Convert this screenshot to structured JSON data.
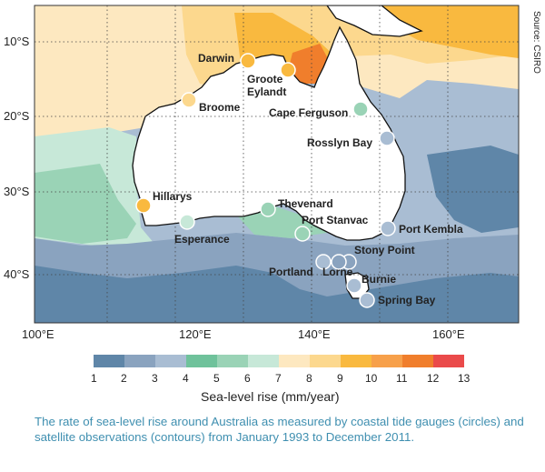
{
  "source": "Source: CSIRO",
  "axes": {
    "latitudes": [
      "10°S",
      "20°S",
      "30°S",
      "40°S"
    ],
    "longitudes": [
      "100°E",
      "120°E",
      "140°E",
      "160°E"
    ]
  },
  "stations": [
    {
      "name": "Darwin",
      "rate_band": 9,
      "color": "#f9b93f"
    },
    {
      "name": "Groote\nEylandt",
      "rate_band": 9,
      "color": "#f9b93f"
    },
    {
      "name": "Broome",
      "rate_band": 8,
      "color": "#fcd88e"
    },
    {
      "name": "Cape Ferguson",
      "rate_band": 5,
      "color": "#9ad3b6"
    },
    {
      "name": "Rosslyn Bay",
      "rate_band": 3,
      "color": "#a9bdd3"
    },
    {
      "name": "Hillarys",
      "rate_band": 9,
      "color": "#f9b93f"
    },
    {
      "name": "Thevenard",
      "rate_band": 5,
      "color": "#9ad3b6"
    },
    {
      "name": "Esperance",
      "rate_band": 6,
      "color": "#c7e8d8"
    },
    {
      "name": "Port Stanvac",
      "rate_band": 5,
      "color": "#9ad3b6"
    },
    {
      "name": "Port Kembla",
      "rate_band": 3,
      "color": "#a9bdd3"
    },
    {
      "name": "Stony Point",
      "rate_band": 2,
      "color": "#8aa3bf"
    },
    {
      "name": "Portland",
      "rate_band": 3,
      "color": "#a9bdd3"
    },
    {
      "name": "Lorne",
      "rate_band": 2,
      "color": "#8aa3bf"
    },
    {
      "name": "Burnie",
      "rate_band": 3,
      "color": "#a9bdd3"
    },
    {
      "name": "Spring Bay",
      "rate_band": 3,
      "color": "#a9bdd3"
    }
  ],
  "legend": {
    "title": "Sea-level rise (mm/year)",
    "ticks": [
      "1",
      "2",
      "3",
      "4",
      "5",
      "6",
      "7",
      "8",
      "9",
      "10",
      "11",
      "12",
      "13"
    ],
    "colors": [
      "#5f86a8",
      "#8aa3bf",
      "#a9bdd3",
      "#6fc29b",
      "#9ad3b6",
      "#c7e8d8",
      "#fde8c0",
      "#fcd88e",
      "#f9b93f",
      "#f7a04a",
      "#f07e2c",
      "#ea4a4a"
    ]
  },
  "colors": {
    "land": "#ffffff",
    "ocean_low": "#5f86a8",
    "ocean_mid": "#a9bdd3",
    "ocean_high": "#f9b93f",
    "caption": "#3f8fb0"
  },
  "caption": "The rate of sea-level rise around Australia as measured by coastal tide gauges (circles) and satellite observations (contours) from January 1993 to December 2011."
}
